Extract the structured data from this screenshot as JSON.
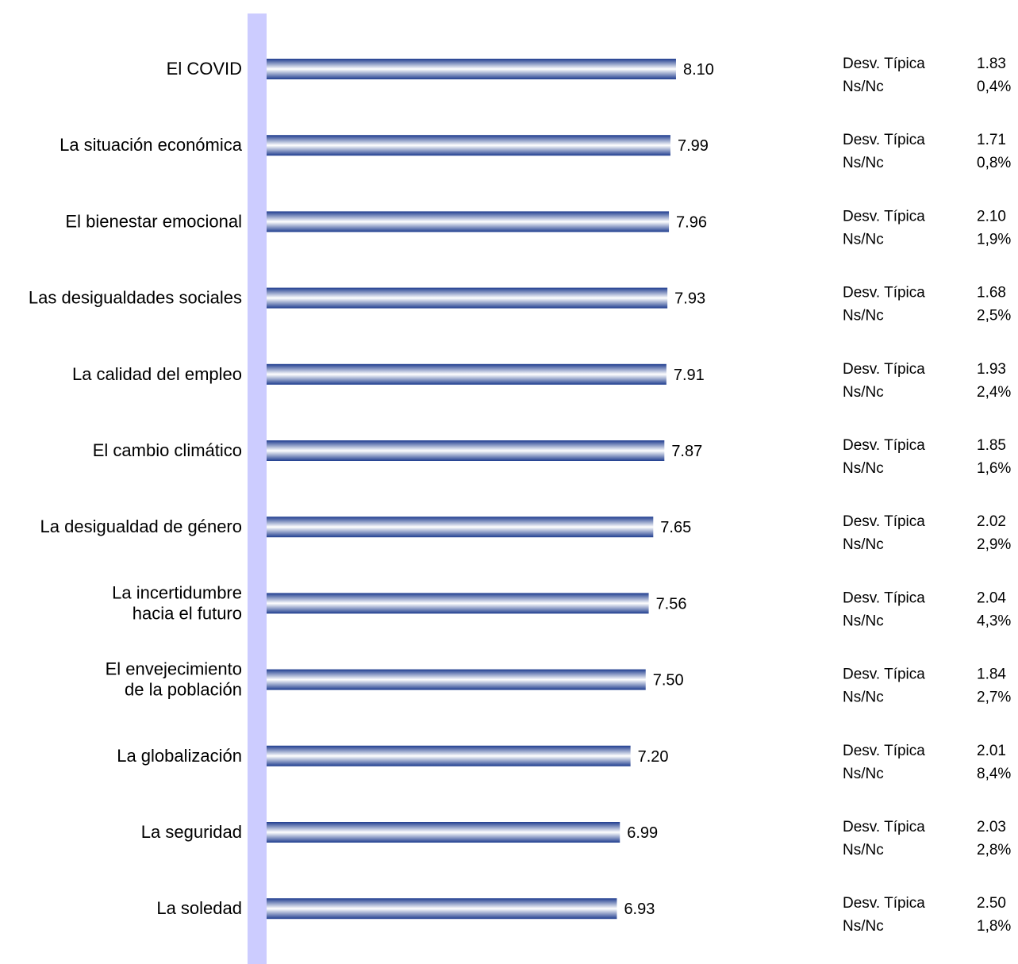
{
  "chart_data": {
    "type": "bar",
    "orientation": "horizontal",
    "categories": [
      "El COVID",
      "La situación económica",
      "El bienestar emocional",
      "Las desigualdades sociales",
      "La calidad del empleo",
      "El cambio climático",
      "La desigualdad de género",
      "La incertidumbre hacia el futuro",
      "El envejecimiento de la población",
      "La globalización",
      "La seguridad",
      "La soledad"
    ],
    "category_lines": [
      [
        "El COVID"
      ],
      [
        "La situación económica"
      ],
      [
        "El bienestar emocional"
      ],
      [
        "Las desigualdades sociales"
      ],
      [
        "La calidad del empleo"
      ],
      [
        "El cambio climático"
      ],
      [
        "La desigualdad de género"
      ],
      [
        "La incertidumbre",
        "hacia el futuro"
      ],
      [
        "El envejecimiento",
        "de la población"
      ],
      [
        "La globalización"
      ],
      [
        "La seguridad"
      ],
      [
        "La soledad"
      ]
    ],
    "values": [
      8.1,
      7.99,
      7.96,
      7.93,
      7.91,
      7.87,
      7.65,
      7.56,
      7.5,
      7.2,
      6.99,
      6.93
    ],
    "value_labels": [
      "8.10",
      "7.99",
      "7.96",
      "7.93",
      "7.91",
      "7.87",
      "7.65",
      "7.56",
      "7.50",
      "7.20",
      "6.99",
      "6.93"
    ],
    "xlim": [
      0,
      10
    ],
    "grid": false,
    "legend": false,
    "stats": {
      "desv_label": "Desv. Típica",
      "nsnc_label": "Ns/Nc",
      "desv_values": [
        "1.83",
        "1.71",
        "2.10",
        "1.68",
        "1.93",
        "1.85",
        "2.02",
        "2.04",
        "1.84",
        "2.01",
        "2.03",
        "2.50"
      ],
      "nsnc_values": [
        "0,4%",
        "0,8%",
        "1,9%",
        "2,5%",
        "2,4%",
        "1,6%",
        "2,9%",
        "4,3%",
        "2,7%",
        "8,4%",
        "2,8%",
        "1,8%"
      ]
    },
    "colors": {
      "bar_dark": "#1f3d8f",
      "bar_light": "#ffffff",
      "axis_band": "#ccccff",
      "text": "#000000"
    }
  }
}
